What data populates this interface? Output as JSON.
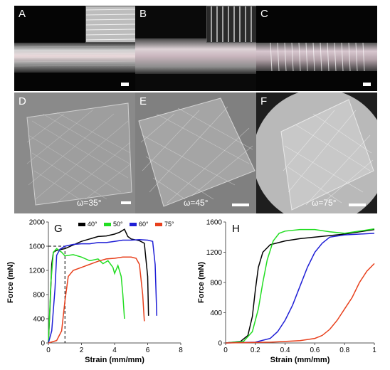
{
  "panels": {
    "A": {
      "label": "A"
    },
    "B": {
      "label": "B"
    },
    "C": {
      "label": "C"
    },
    "D": {
      "label": "D",
      "omega": "ω=35°"
    },
    "E": {
      "label": "E",
      "omega": "ω=45°"
    },
    "F": {
      "label": "F",
      "omega": "ω=75°"
    },
    "G": {
      "label": "G"
    },
    "H": {
      "label": "H"
    }
  },
  "colors": {
    "c40": "#000000",
    "c50": "#22dd22",
    "c60": "#1f1fd6",
    "c75": "#e8401c"
  },
  "chart_data": [
    {
      "type": "line",
      "panel": "G",
      "xlabel": "Strain (mm/mm)",
      "ylabel": "Force (mN)",
      "xlim": [
        0,
        8
      ],
      "ylim": [
        0,
        2000
      ],
      "xticks": [
        "0",
        "2",
        "4",
        "6",
        "8"
      ],
      "yticks": [
        "0",
        "400",
        "800",
        "1200",
        "1600",
        "2000"
      ],
      "legend": [
        "40°",
        "50°",
        "60°",
        "75°"
      ],
      "series": [
        {
          "name": "40°",
          "color": "#000000",
          "x": [
            0,
            0.1,
            0.2,
            0.3,
            0.5,
            1.0,
            1.5,
            2.0,
            2.5,
            3.0,
            3.5,
            4.0,
            4.3,
            4.6,
            4.8,
            5.0,
            5.5,
            5.8,
            6.0,
            6.05
          ],
          "y": [
            0,
            600,
            1300,
            1500,
            1530,
            1560,
            1620,
            1680,
            1720,
            1760,
            1770,
            1800,
            1830,
            1880,
            1760,
            1720,
            1690,
            1650,
            1100,
            450
          ]
        },
        {
          "name": "50°",
          "color": "#22dd22",
          "x": [
            0,
            0.15,
            0.3,
            0.5,
            0.8,
            1.0,
            1.5,
            2.0,
            2.5,
            3.0,
            3.3,
            3.6,
            3.9,
            4.0,
            4.2,
            4.4,
            4.5,
            4.6
          ],
          "y": [
            0,
            1000,
            1500,
            1560,
            1500,
            1440,
            1460,
            1420,
            1360,
            1390,
            1310,
            1360,
            1250,
            1150,
            1280,
            1100,
            800,
            400
          ]
        },
        {
          "name": "60°",
          "color": "#1f1fd6",
          "x": [
            0,
            0.2,
            0.4,
            0.5,
            0.7,
            1.0,
            1.5,
            2.0,
            2.5,
            3.0,
            3.5,
            4.0,
            4.5,
            5.0,
            5.5,
            6.0,
            6.3,
            6.45,
            6.55
          ],
          "y": [
            0,
            200,
            900,
            1450,
            1550,
            1600,
            1630,
            1640,
            1640,
            1660,
            1660,
            1680,
            1700,
            1700,
            1710,
            1700,
            1680,
            1300,
            450
          ]
        },
        {
          "name": "75°",
          "color": "#e8401c",
          "x": [
            0,
            0.5,
            0.8,
            1.0,
            1.2,
            1.5,
            2.0,
            2.5,
            3.0,
            3.5,
            4.0,
            4.5,
            5.0,
            5.3,
            5.5,
            5.7,
            5.8
          ],
          "y": [
            0,
            40,
            200,
            700,
            1100,
            1200,
            1250,
            1300,
            1350,
            1390,
            1400,
            1420,
            1420,
            1400,
            1300,
            800,
            360
          ]
        }
      ],
      "reference_lines": [
        {
          "x": 1,
          "y": 1600
        }
      ]
    },
    {
      "type": "line",
      "panel": "H",
      "xlabel": "Strain (mm/mm)",
      "ylabel": "Force (mN)",
      "xlim": [
        0,
        1
      ],
      "ylim": [
        0,
        1600
      ],
      "xticks": [
        "0",
        "0.2",
        "0.4",
        "0.6",
        "0.8",
        "1"
      ],
      "yticks": [
        "0",
        "400",
        "800",
        "1200",
        "1600"
      ],
      "series": [
        {
          "name": "40°",
          "color": "#000000",
          "x": [
            0,
            0.1,
            0.15,
            0.18,
            0.2,
            0.22,
            0.25,
            0.3,
            0.4,
            0.5,
            0.6,
            0.7,
            0.8,
            0.9,
            1.0
          ],
          "y": [
            0,
            20,
            100,
            350,
            700,
            1000,
            1200,
            1300,
            1350,
            1380,
            1400,
            1420,
            1440,
            1470,
            1500
          ]
        },
        {
          "name": "50°",
          "color": "#22dd22",
          "x": [
            0,
            0.12,
            0.18,
            0.22,
            0.25,
            0.28,
            0.32,
            0.36,
            0.4,
            0.5,
            0.6,
            0.7,
            0.8,
            0.9,
            1.0
          ],
          "y": [
            0,
            20,
            150,
            450,
            800,
            1100,
            1350,
            1450,
            1480,
            1500,
            1500,
            1470,
            1450,
            1480,
            1510
          ]
        },
        {
          "name": "60°",
          "color": "#1f1fd6",
          "x": [
            0,
            0.2,
            0.3,
            0.35,
            0.4,
            0.45,
            0.5,
            0.55,
            0.6,
            0.65,
            0.7,
            0.8,
            0.9,
            1.0
          ],
          "y": [
            0,
            10,
            60,
            150,
            300,
            500,
            750,
            1000,
            1200,
            1320,
            1400,
            1430,
            1440,
            1450
          ]
        },
        {
          "name": "75°",
          "color": "#e8401c",
          "x": [
            0,
            0.3,
            0.5,
            0.6,
            0.65,
            0.7,
            0.75,
            0.8,
            0.85,
            0.9,
            0.95,
            1.0
          ],
          "y": [
            0,
            10,
            30,
            60,
            100,
            180,
            300,
            450,
            600,
            800,
            950,
            1050
          ]
        }
      ]
    }
  ]
}
